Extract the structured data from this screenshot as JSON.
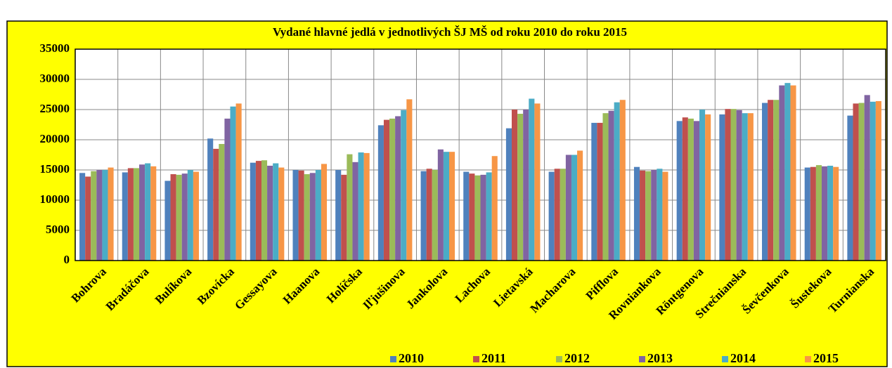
{
  "chart_data": {
    "type": "bar",
    "title": "Vydané hlavné jedlá v jednotlivých ŠJ MŠ od roku 2010 do roku 2015",
    "categories": [
      "Bohrova",
      "Bradáčova",
      "Bulíkova",
      "Bzovícka",
      "Gessayova",
      "Haanova",
      "Holíčska",
      "Iľjušinova",
      "Jankolova",
      "Lachova",
      "Lietavská",
      "Macharova",
      "Pifflova",
      "Rovniankova",
      "Röntgenova",
      "Strečnianska",
      "Ševčenkova",
      "Šustekova",
      "Turnianska"
    ],
    "series": [
      {
        "name": "2010",
        "color": "#4f81bd",
        "values": [
          14500,
          14600,
          13200,
          20200,
          16200,
          15000,
          15000,
          22400,
          14800,
          14700,
          21900,
          14700,
          22800,
          15500,
          23100,
          24200,
          26100,
          15400,
          24000
        ]
      },
      {
        "name": "2011",
        "color": "#c0504d",
        "values": [
          13900,
          15300,
          14300,
          18500,
          16500,
          14900,
          14200,
          23300,
          15200,
          14400,
          25000,
          15200,
          22800,
          14900,
          23700,
          25100,
          26600,
          15500,
          26000
        ]
      },
      {
        "name": "2012",
        "color": "#9bbb59",
        "values": [
          14800,
          15300,
          14200,
          19300,
          16600,
          14300,
          17600,
          23500,
          15000,
          14100,
          24300,
          15200,
          24400,
          14800,
          23500,
          25100,
          26600,
          15800,
          26100
        ]
      },
      {
        "name": "2013",
        "color": "#8064a2",
        "values": [
          15000,
          15900,
          14400,
          23500,
          15700,
          14500,
          16300,
          23900,
          18400,
          14200,
          25000,
          17500,
          24800,
          15000,
          23100,
          24900,
          29000,
          15600,
          27400
        ]
      },
      {
        "name": "2014",
        "color": "#4bacc6",
        "values": [
          15000,
          16100,
          15000,
          25500,
          16100,
          15000,
          17900,
          24900,
          18000,
          14600,
          26800,
          17500,
          26200,
          15200,
          25000,
          24400,
          29400,
          15700,
          26300
        ]
      },
      {
        "name": "2015",
        "color": "#f79646",
        "values": [
          15400,
          15600,
          14700,
          26000,
          15400,
          16000,
          17800,
          26700,
          18000,
          17300,
          26000,
          18200,
          26600,
          14700,
          24200,
          24400,
          29000,
          15500,
          26400
        ]
      }
    ],
    "ylim": [
      0,
      35000
    ],
    "yticks": [
      0,
      5000,
      10000,
      15000,
      20000,
      25000,
      30000,
      35000
    ],
    "grid": true
  }
}
